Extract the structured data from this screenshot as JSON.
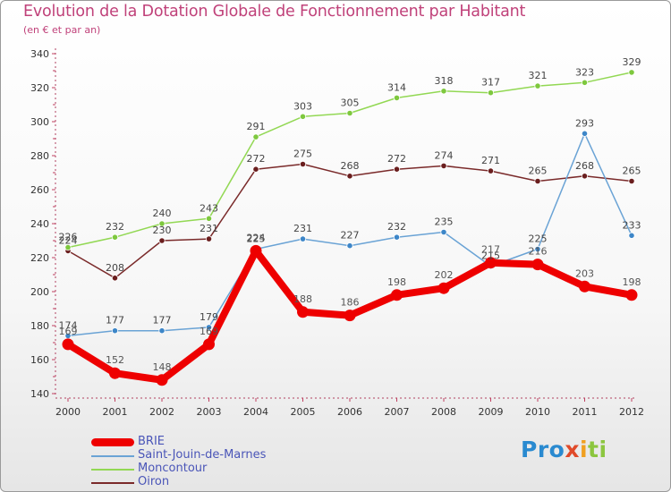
{
  "chart_data": {
    "type": "line",
    "title": "Evolution de la Dotation Globale de Fonctionnement par Habitant",
    "subtitle": "(en € et par an)",
    "x": [
      "2000",
      "2001",
      "2002",
      "2003",
      "2004",
      "2005",
      "2006",
      "2007",
      "2008",
      "2009",
      "2010",
      "2011",
      "2012"
    ],
    "ylim": [
      140,
      340
    ],
    "yticks": [
      "140",
      "160",
      "180",
      "200",
      "220",
      "240",
      "260",
      "280",
      "300",
      "320",
      "340"
    ],
    "grid": false,
    "legend_position": "bottom-left",
    "series": [
      {
        "name": "BRIE",
        "color": "#ee0000",
        "values": [
          169,
          152,
          148,
          169,
          224,
          188,
          186,
          198,
          202,
          217,
          216,
          203,
          198
        ]
      },
      {
        "name": "Saint-Jouin-de-Marnes",
        "color": "#6aa3d5",
        "values": [
          174,
          177,
          177,
          179,
          225,
          231,
          227,
          232,
          235,
          215,
          225,
          293,
          233
        ]
      },
      {
        "name": "Moncontour",
        "color": "#92d853",
        "values": [
          226,
          232,
          240,
          243,
          291,
          303,
          305,
          314,
          318,
          317,
          321,
          323,
          329
        ]
      },
      {
        "name": "Oiron",
        "color": "#7a2a2a",
        "values": [
          224,
          208,
          230,
          231,
          272,
          275,
          268,
          272,
          274,
          271,
          265,
          268,
          265
        ]
      }
    ]
  },
  "logo": {
    "p1": "Pro",
    "p2": "x",
    "p3": "i",
    "p4": "ti"
  }
}
